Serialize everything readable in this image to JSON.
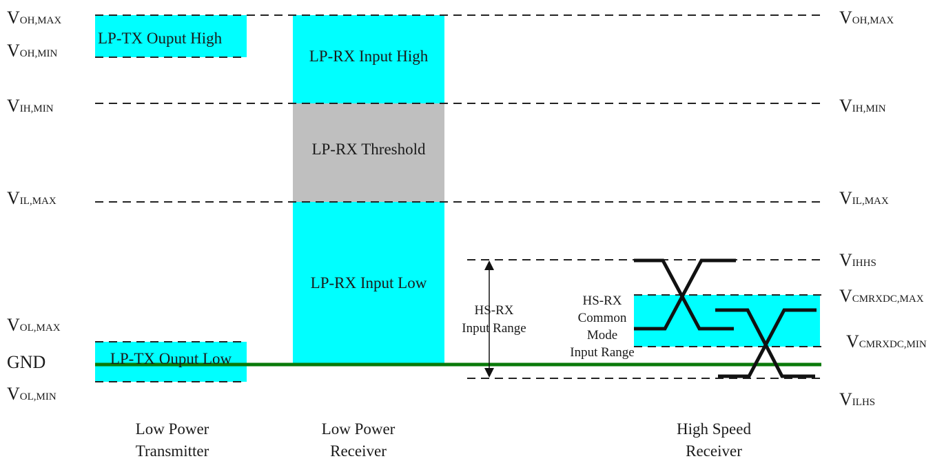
{
  "colors": {
    "cyan": "#00ffff",
    "gray": "#bfbfbf",
    "gnd_line": "#0a7a0a",
    "dashed": "#222222"
  },
  "left_levels": {
    "voh_max": {
      "main": "V",
      "sub": "OH,MAX"
    },
    "voh_min": {
      "main": "V",
      "sub": "OH,MIN"
    },
    "vih_min": {
      "main": "V",
      "sub": "IH,MIN"
    },
    "vil_max": {
      "main": "V",
      "sub": "IL,MAX"
    },
    "vol_max": {
      "main": "V",
      "sub": "OL,MAX"
    },
    "gnd": "GND",
    "vol_min": {
      "main": "V",
      "sub": "OL,MIN"
    }
  },
  "right_levels": {
    "voh_max": {
      "main": "V",
      "sub": "OH,MAX"
    },
    "vih_min": {
      "main": "V",
      "sub": "IH,MIN"
    },
    "vil_max": {
      "main": "V",
      "sub": "IL,MAX"
    },
    "vihhs": {
      "main": "V",
      "sub": "IHHS"
    },
    "vcmrxdc_max": {
      "main": "V",
      "sub": "CMRXDC,MAX"
    },
    "vcmrxdc_min": {
      "main": "V",
      "sub": "CMRXDC,MIN"
    },
    "vilhs": {
      "main": "V",
      "sub": "ILHS"
    }
  },
  "regions": {
    "lp_tx_high": "LP-TX Ouput High",
    "lp_tx_low": "LP-TX Ouput Low",
    "lp_rx_high": "LP-RX Input High",
    "lp_rx_threshold": "LP-RX Threshold",
    "lp_rx_low": "LP-RX Input Low",
    "hs_rx_input_range": [
      "HS-RX",
      "Input Range"
    ],
    "hs_rx_common_mode": [
      "HS-RX",
      "Common",
      "Mode",
      "Input Range"
    ]
  },
  "columns": {
    "low_power_tx": [
      "Low Power",
      "Transmitter"
    ],
    "low_power_rx": [
      "Low Power",
      "Receiver"
    ],
    "high_speed_rx": [
      "High Speed",
      "Receiver"
    ]
  }
}
